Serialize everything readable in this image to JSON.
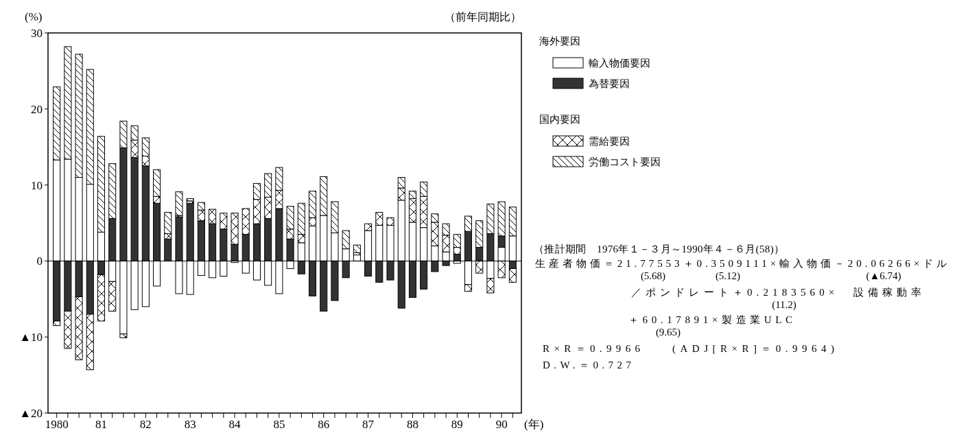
{
  "chart_data": {
    "type": "bar",
    "stacked": true,
    "ylabel": "(%)",
    "xlabel": "(年)",
    "categories": [
      "1980",
      null,
      null,
      null,
      "81",
      null,
      null,
      null,
      "82",
      null,
      null,
      null,
      "83",
      null,
      null,
      null,
      "84",
      null,
      null,
      null,
      "85",
      null,
      null,
      null,
      "86",
      null,
      null,
      null,
      "87",
      null,
      null,
      null,
      "88",
      null,
      null,
      null,
      "89",
      null,
      null,
      null,
      "90",
      null
    ],
    "series": [
      {
        "name": "輸入物価要因",
        "color": "#ffffff",
        "values": [
          13.3,
          13.4,
          11.0,
          10.1,
          3.8,
          -2.7,
          -9.6,
          -6.4,
          -6.0,
          -3.3,
          0,
          -4.3,
          -4.4,
          -1.9,
          -2.2,
          -2.0,
          -0.2,
          -1.6,
          -2.5,
          -3.2,
          -4.3,
          -1.0,
          2.4,
          4.6,
          6.0,
          3.7,
          1.6,
          0.8,
          4.0,
          4.7,
          4.7,
          8.0,
          5.1,
          4.4,
          2.0,
          1.2,
          -0.3,
          -3.1,
          0,
          -2.3,
          1.8,
          3.3
        ]
      },
      {
        "name": "為替要因",
        "color": "#333333",
        "values": [
          -7.9,
          -6.6,
          -4.7,
          -7.0,
          -1.8,
          5.6,
          14.9,
          13.6,
          12.5,
          7.6,
          2.9,
          5.8,
          7.6,
          5.3,
          4.9,
          4.2,
          2.2,
          3.5,
          4.9,
          5.6,
          6.9,
          2.9,
          -1.7,
          -4.6,
          -6.6,
          -5.2,
          -2.2,
          0,
          -2.0,
          -2.8,
          -2.5,
          -6.2,
          -4.8,
          -3.7,
          -1.4,
          -0.6,
          0.9,
          3.9,
          1.8,
          3.6,
          1.5,
          -1.0
        ]
      },
      {
        "name": "需給要因",
        "color": "#000000",
        "values": [
          -0.6,
          -4.9,
          -8.3,
          -7.3,
          -6.1,
          -3.9,
          -0.5,
          2.3,
          1.3,
          0.9,
          0.7,
          0.2,
          0.3,
          1.4,
          1.9,
          2.1,
          4.1,
          3.4,
          3.2,
          2.8,
          2.4,
          1.3,
          1.1,
          1.1,
          0,
          0,
          0,
          0.3,
          0.9,
          1.7,
          1.0,
          1.6,
          3.1,
          4.1,
          3.1,
          2.2,
          0.9,
          -0.9,
          -1.6,
          -1.9,
          -2.2,
          -1.8
        ]
      },
      {
        "name": "労働コスト要因",
        "color": "#000000",
        "values": [
          9.6,
          14.8,
          16.2,
          15.1,
          12.6,
          7.2,
          3.5,
          1.9,
          2.4,
          3.5,
          2.8,
          3.1,
          0.3,
          1.0,
          0,
          0,
          0,
          0,
          2.1,
          3.1,
          3.0,
          3.0,
          4.1,
          3.5,
          5.1,
          4.1,
          2.4,
          1.0,
          0,
          0,
          0,
          1.4,
          1.0,
          1.9,
          1.1,
          1.5,
          1.7,
          2.0,
          3.5,
          3.9,
          4.5,
          3.8
        ]
      }
    ],
    "ylim": [
      -20,
      30
    ],
    "yticks": [
      {
        "value": -20,
        "label": "▲20"
      },
      {
        "value": -10,
        "label": "▲10"
      },
      0,
      10,
      20,
      30
    ],
    "legend": "right",
    "annotations": [
      "海外要因",
      "国内要因",
      "（前年同期比）",
      "（推計期間　1976年１－３月～1990年４－６月(58)）",
      "生産者物価＝21.77553＋0.3509111×輸入物価－20.06266×ドル",
      "(5.68)",
      "(5.12)",
      "(▲6.74)",
      "／ポンドレート＋0.2183560×　設備稼動率",
      "(11.2)",
      "＋60.17891×製造業ULC",
      "(9.65)",
      "R×R＝0.9966",
      "(ADJ[R×R]＝0.9964)",
      "D.W.＝0.727"
    ]
  }
}
